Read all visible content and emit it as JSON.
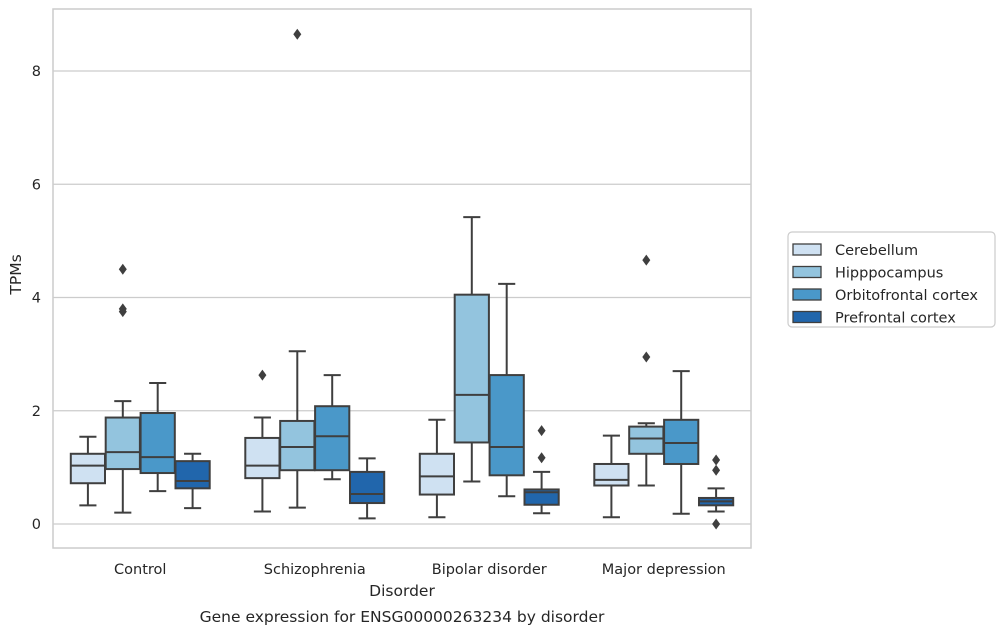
{
  "chart_data": {
    "type": "box",
    "caption": "Gene expression for ENSG00000263234 by disorder",
    "xlabel": "Disorder",
    "ylabel": "TPMs",
    "ylim": [
      -0.4,
      9.1
    ],
    "yticks": [
      0,
      2,
      4,
      6,
      8
    ],
    "grid": "horizontal",
    "legend_position": "right",
    "categories": [
      "Control",
      "Schizophrenia",
      "Bipolar disorder",
      "Major depression"
    ],
    "series": [
      {
        "name": "Cerebellum",
        "color": "#cfe1f2",
        "boxes": [
          {
            "whisker_low": 0.33,
            "q1": 0.72,
            "median": 1.03,
            "q3": 1.24,
            "whisker_high": 1.54,
            "outliers": []
          },
          {
            "whisker_low": 0.22,
            "q1": 0.81,
            "median": 1.03,
            "q3": 1.52,
            "whisker_high": 1.88,
            "outliers": [
              2.63
            ]
          },
          {
            "whisker_low": 0.12,
            "q1": 0.52,
            "median": 0.84,
            "q3": 1.24,
            "whisker_high": 1.84,
            "outliers": []
          },
          {
            "whisker_low": 0.12,
            "q1": 0.68,
            "median": 0.78,
            "q3": 1.06,
            "whisker_high": 1.56,
            "outliers": []
          }
        ]
      },
      {
        "name": "Hipppocampus",
        "color": "#93c4de",
        "boxes": [
          {
            "whisker_low": 0.2,
            "q1": 0.97,
            "median": 1.27,
            "q3": 1.88,
            "whisker_high": 2.17,
            "outliers": [
              3.75,
              3.8,
              4.5
            ]
          },
          {
            "whisker_low": 0.29,
            "q1": 0.95,
            "median": 1.36,
            "q3": 1.82,
            "whisker_high": 3.05,
            "outliers": [
              8.65
            ]
          },
          {
            "whisker_low": 0.75,
            "q1": 1.44,
            "median": 2.28,
            "q3": 4.05,
            "whisker_high": 5.42,
            "outliers": []
          },
          {
            "whisker_low": 0.68,
            "q1": 1.24,
            "median": 1.51,
            "q3": 1.72,
            "whisker_high": 1.78,
            "outliers": [
              2.95,
              4.66
            ]
          }
        ]
      },
      {
        "name": "Orbitofrontal cortex",
        "color": "#4a98c9",
        "boxes": [
          {
            "whisker_low": 0.58,
            "q1": 0.9,
            "median": 1.18,
            "q3": 1.96,
            "whisker_high": 2.49,
            "outliers": []
          },
          {
            "whisker_low": 0.79,
            "q1": 0.95,
            "median": 1.55,
            "q3": 2.08,
            "whisker_high": 2.63,
            "outliers": []
          },
          {
            "whisker_low": 0.49,
            "q1": 0.86,
            "median": 1.36,
            "q3": 2.63,
            "whisker_high": 4.24,
            "outliers": []
          },
          {
            "whisker_low": 0.18,
            "q1": 1.06,
            "median": 1.43,
            "q3": 1.84,
            "whisker_high": 2.7,
            "outliers": []
          }
        ]
      },
      {
        "name": "Prefrontal cortex",
        "color": "#2166ac",
        "boxes": [
          {
            "whisker_low": 0.28,
            "q1": 0.63,
            "median": 0.76,
            "q3": 1.11,
            "whisker_high": 1.24,
            "outliers": []
          },
          {
            "whisker_low": 0.1,
            "q1": 0.37,
            "median": 0.53,
            "q3": 0.92,
            "whisker_high": 1.16,
            "outliers": []
          },
          {
            "whisker_low": 0.19,
            "q1": 0.34,
            "median": 0.56,
            "q3": 0.61,
            "whisker_high": 0.92,
            "outliers": [
              1.17,
              1.65
            ]
          },
          {
            "whisker_low": 0.22,
            "q1": 0.33,
            "median": 0.4,
            "q3": 0.46,
            "whisker_high": 0.63,
            "outliers": [
              0.0,
              0.95,
              1.13
            ]
          }
        ]
      }
    ]
  }
}
